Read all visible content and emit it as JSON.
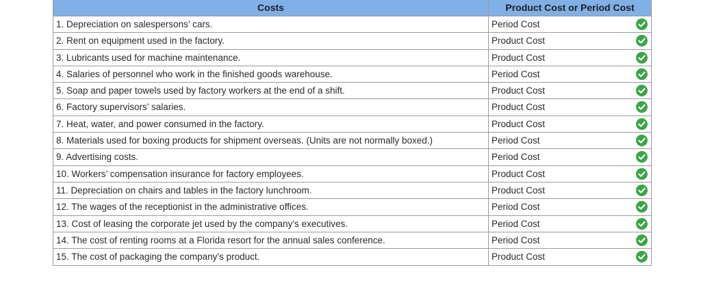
{
  "table": {
    "headers": {
      "costs": "Costs",
      "type": "Product Cost or Period Cost"
    },
    "check_color": "#3aa547",
    "rows": [
      {
        "desc": "1. Depreciation on salespersons’ cars.",
        "type": "Period Cost",
        "status_icon": "check-icon"
      },
      {
        "desc": "2. Rent on equipment used in the factory.",
        "type": "Product Cost",
        "status_icon": "check-icon"
      },
      {
        "desc": "3. Lubricants used for machine maintenance.",
        "type": "Product Cost",
        "status_icon": "check-icon"
      },
      {
        "desc": "4. Salaries of personnel who work in the finished goods warehouse.",
        "type": "Period Cost",
        "status_icon": "check-icon"
      },
      {
        "desc": "5. Soap and paper towels used by factory workers at the end of a shift.",
        "type": "Product Cost",
        "status_icon": "check-icon"
      },
      {
        "desc": "6. Factory supervisors’ salaries.",
        "type": "Product Cost",
        "status_icon": "check-icon"
      },
      {
        "desc": "7. Heat, water, and power consumed in the factory.",
        "type": "Product Cost",
        "status_icon": "check-icon"
      },
      {
        "desc": "8. Materials used for boxing products for shipment overseas. (Units are not normally boxed.)",
        "type": "Period Cost",
        "status_icon": "check-icon"
      },
      {
        "desc": "9. Advertising costs.",
        "type": "Period Cost",
        "status_icon": "check-icon"
      },
      {
        "desc": "10. Workers’ compensation insurance for factory employees.",
        "type": "Product Cost",
        "status_icon": "check-icon"
      },
      {
        "desc": "11. Depreciation on chairs and tables in the factory lunchroom.",
        "type": "Product Cost",
        "status_icon": "check-icon"
      },
      {
        "desc": "12. The wages of the receptionist in the administrative offices.",
        "type": "Period Cost",
        "status_icon": "check-icon"
      },
      {
        "desc": "13. Cost of leasing the corporate jet used by the company’s executives.",
        "type": "Period Cost",
        "status_icon": "check-icon"
      },
      {
        "desc": "14. The cost of renting rooms at a Florida resort for the annual sales conference.",
        "type": "Period Cost",
        "status_icon": "check-icon"
      },
      {
        "desc": "15. The cost of packaging the company’s product.",
        "type": "Product Cost",
        "status_icon": "check-icon"
      }
    ]
  }
}
